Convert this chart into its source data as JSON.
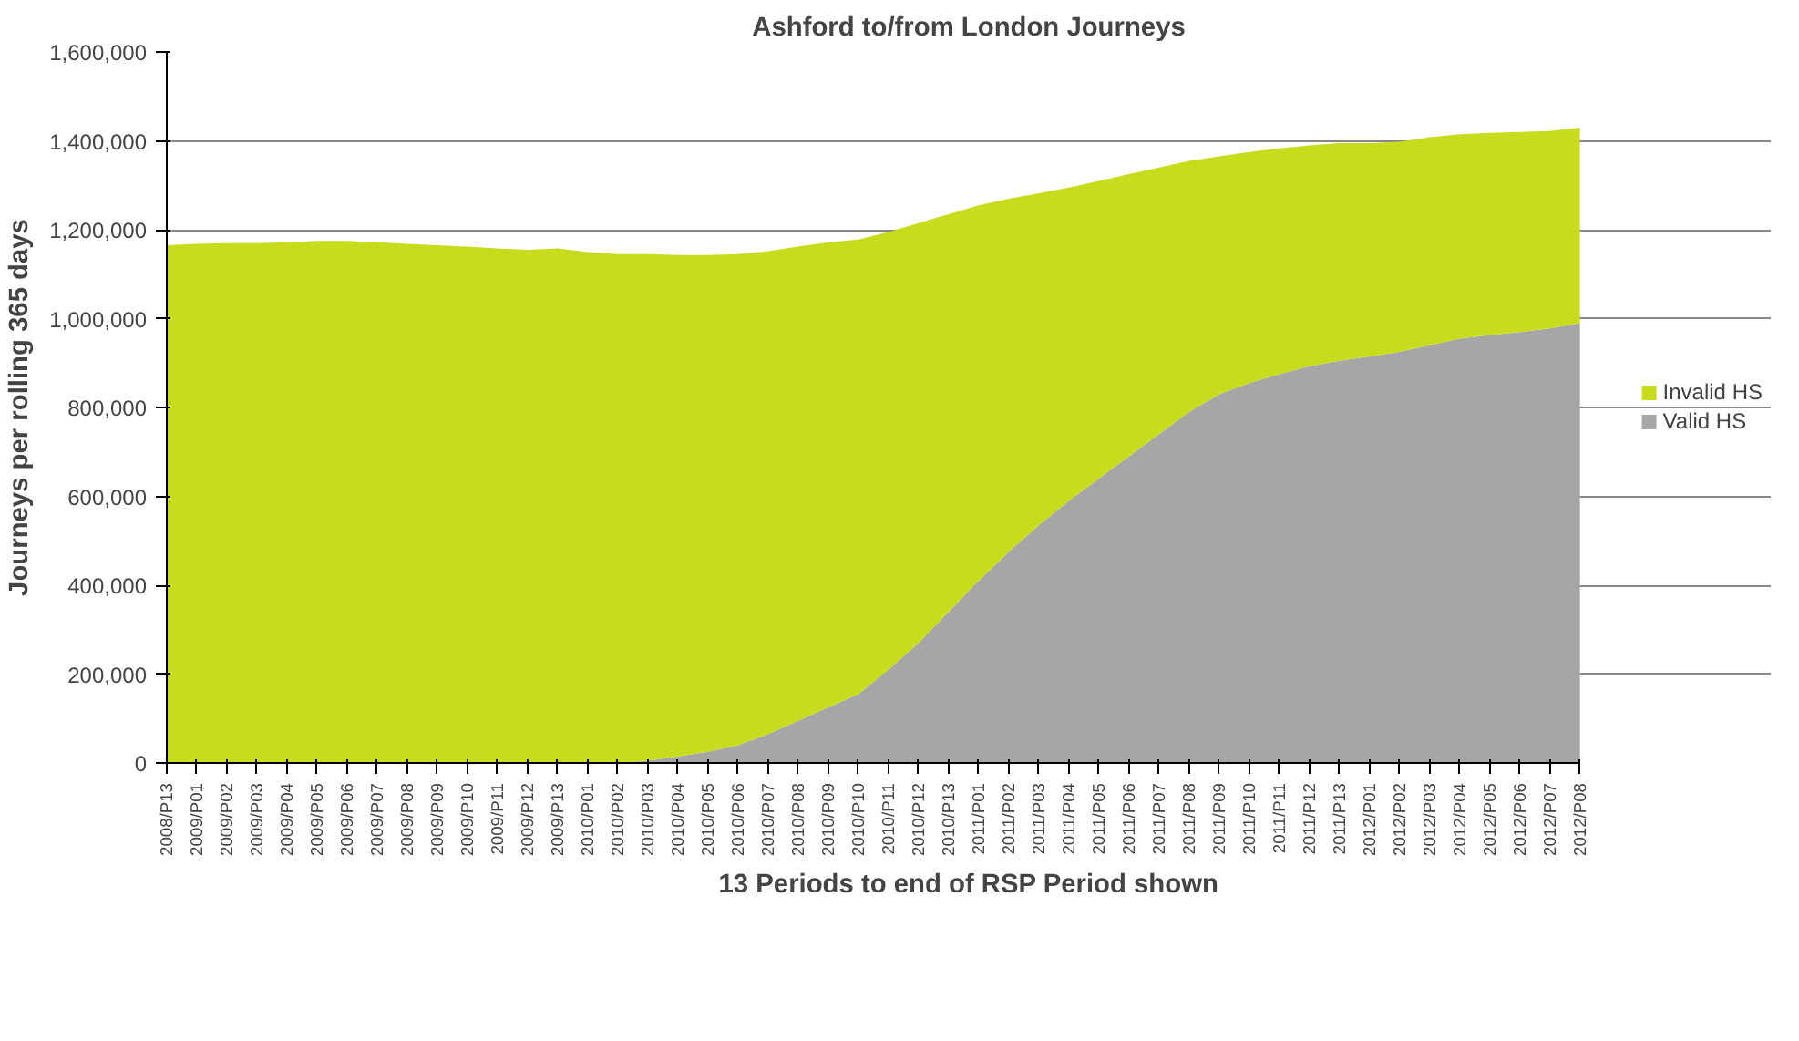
{
  "chart_data": {
    "type": "area",
    "title": "Ashford to/from London Journeys",
    "xlabel": "13 Periods to end of RSP Period shown",
    "ylabel": "Journeys per rolling 365 days",
    "categories": [
      "2008/P13",
      "2009/P01",
      "2009/P02",
      "2009/P03",
      "2009/P04",
      "2009/P05",
      "2009/P06",
      "2009/P07",
      "2009/P08",
      "2009/P09",
      "2009/P10",
      "2009/P11",
      "2009/P12",
      "2009/P13",
      "2010/P01",
      "2010/P02",
      "2010/P03",
      "2010/P04",
      "2010/P05",
      "2010/P06",
      "2010/P07",
      "2010/P08",
      "2010/P09",
      "2010/P10",
      "2010/P11",
      "2010/P12",
      "2010/P13",
      "2011/P01",
      "2011/P02",
      "2011/P03",
      "2011/P04",
      "2011/P05",
      "2011/P06",
      "2011/P07",
      "2011/P08",
      "2011/P09",
      "2011/P10",
      "2011/P11",
      "2011/P12",
      "2011/P13",
      "2012/P01",
      "2012/P02",
      "2012/P03",
      "2012/P04",
      "2012/P05",
      "2012/P06",
      "2012/P07",
      "2012/P08"
    ],
    "stacked": true,
    "series": [
      {
        "name": "Valid HS",
        "color": "#a6a6a6",
        "values": [
          0,
          0,
          0,
          0,
          0,
          0,
          0,
          0,
          0,
          0,
          0,
          0,
          0,
          0,
          0,
          0,
          5000,
          15000,
          25000,
          40000,
          65000,
          95000,
          125000,
          155000,
          210000,
          270000,
          340000,
          410000,
          475000,
          535000,
          590000,
          640000,
          690000,
          740000,
          790000,
          830000,
          855000,
          875000,
          893000,
          905000,
          915000,
          925000,
          940000,
          955000,
          963000,
          970000,
          978000,
          990000
        ]
      },
      {
        "name": "Invalid HS",
        "color": "#c8dc1e",
        "values": [
          1165000,
          1168000,
          1170000,
          1170000,
          1172000,
          1175000,
          1175000,
          1172000,
          1168000,
          1165000,
          1162000,
          1158000,
          1155000,
          1158000,
          1150000,
          1145000,
          1140000,
          1128000,
          1118000,
          1105000,
          1087000,
          1067000,
          1047000,
          1023000,
          985000,
          945000,
          895000,
          845000,
          795000,
          747000,
          705000,
          670000,
          635000,
          600000,
          565000,
          535000,
          520000,
          508000,
          497000,
          490000,
          480000,
          473000,
          468000,
          460000,
          455000,
          450000,
          444000,
          440000
        ]
      }
    ],
    "ylim": [
      0,
      1600000
    ],
    "yticks": [
      {
        "value": 0,
        "label": "0"
      },
      {
        "value": 200000,
        "label": "200,000"
      },
      {
        "value": 400000,
        "label": "400,000"
      },
      {
        "value": 600000,
        "label": "600,000"
      },
      {
        "value": 800000,
        "label": "800,000"
      },
      {
        "value": 1000000,
        "label": "1,000,000"
      },
      {
        "value": 1200000,
        "label": "1,200,000"
      },
      {
        "value": 1400000,
        "label": "1,400,000"
      },
      {
        "value": 1600000,
        "label": "1,600,000"
      }
    ],
    "grid": "y",
    "legend": "right"
  }
}
